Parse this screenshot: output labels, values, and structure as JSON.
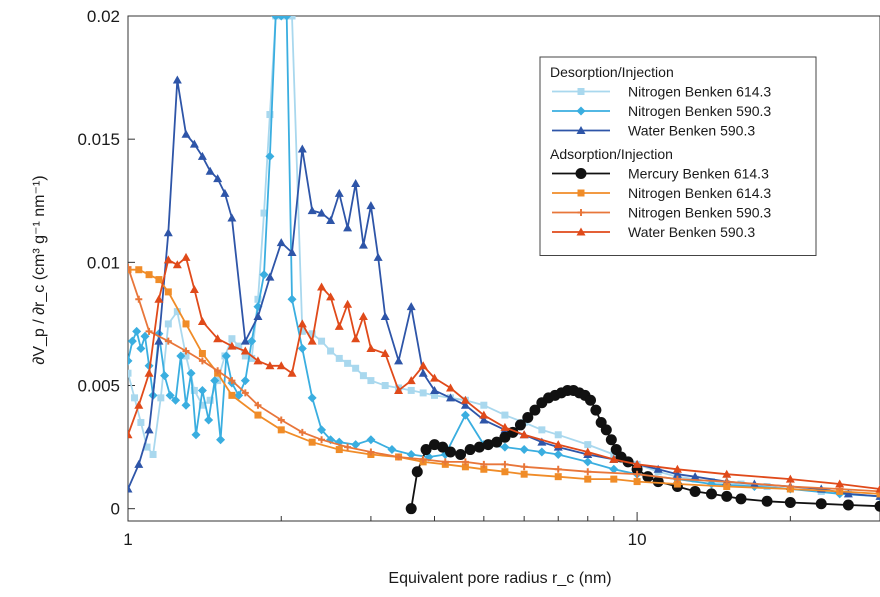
{
  "chart_data": {
    "type": "line",
    "title": "",
    "xlabel": "Equivalent pore radius r_c (nm)",
    "ylabel": "∂V_p / ∂r_c (cm³ g⁻¹ nm⁻¹)",
    "xscale": "log",
    "xlim": [
      1,
      30
    ],
    "ylim": [
      -0.0005,
      0.02
    ],
    "x_ticks": [
      {
        "value": 1,
        "label": "1"
      },
      {
        "value": 10,
        "label": "10"
      }
    ],
    "y_ticks": [
      {
        "value": 0,
        "label": "0"
      },
      {
        "value": 0.005,
        "label": "0.005"
      },
      {
        "value": 0.01,
        "label": "0.01"
      },
      {
        "value": 0.015,
        "label": "0.015"
      },
      {
        "value": 0.02,
        "label": "0.02"
      }
    ],
    "grid": false,
    "legend_position": "top-right",
    "legend_groups": [
      {
        "title": "Desorption/Injection",
        "series_indices": [
          0,
          1,
          2
        ]
      },
      {
        "title": "Adsorption/Injection",
        "series_indices": [
          3,
          4,
          5,
          6
        ]
      }
    ],
    "series": [
      {
        "name": "Nitrogen Benken 614.3",
        "color": "#a9d8ee",
        "marker": "square",
        "x": [
          1.0,
          1.03,
          1.06,
          1.09,
          1.12,
          1.16,
          1.2,
          1.25,
          1.3,
          1.35,
          1.4,
          1.45,
          1.5,
          1.55,
          1.6,
          1.65,
          1.7,
          1.75,
          1.8,
          1.85,
          1.9,
          1.95,
          2.0,
          2.05,
          2.1,
          2.2,
          2.3,
          2.4,
          2.5,
          2.6,
          2.7,
          2.8,
          2.9,
          3.0,
          3.2,
          3.4,
          3.6,
          3.8,
          4.0,
          4.3,
          4.6,
          5.0,
          5.5,
          6.0,
          6.5,
          7.0,
          8.0,
          9.0,
          10,
          11,
          12,
          13,
          14,
          16,
          18,
          20,
          23,
          26,
          30
        ],
        "y": [
          0.0055,
          0.0045,
          0.0035,
          0.0025,
          0.0022,
          0.0045,
          0.0075,
          0.008,
          0.0062,
          0.0048,
          0.0042,
          0.0044,
          0.0052,
          0.0062,
          0.0069,
          0.0066,
          0.0062,
          0.0061,
          0.0085,
          0.012,
          0.016,
          0.02,
          0.02,
          0.02,
          0.02,
          0.0072,
          0.0071,
          0.0068,
          0.0064,
          0.0061,
          0.0059,
          0.0057,
          0.0054,
          0.0052,
          0.005,
          0.0049,
          0.0048,
          0.0047,
          0.0046,
          0.0045,
          0.0044,
          0.0042,
          0.0038,
          0.0035,
          0.0032,
          0.003,
          0.0026,
          0.0022,
          0.0018,
          0.0015,
          0.0013,
          0.0012,
          0.0011,
          0.001,
          0.0009,
          0.0008,
          0.0007,
          0.0006,
          0.0005
        ]
      },
      {
        "name": "Nitrogen Benken 590.3",
        "color": "#3aaee0",
        "marker": "diamond",
        "x": [
          1.0,
          1.02,
          1.04,
          1.06,
          1.08,
          1.1,
          1.12,
          1.15,
          1.18,
          1.21,
          1.24,
          1.27,
          1.3,
          1.33,
          1.36,
          1.4,
          1.44,
          1.48,
          1.52,
          1.56,
          1.6,
          1.65,
          1.7,
          1.75,
          1.8,
          1.85,
          1.9,
          1.95,
          2.0,
          2.05,
          2.1,
          2.2,
          2.3,
          2.4,
          2.5,
          2.6,
          2.8,
          3.0,
          3.3,
          3.6,
          3.9,
          4.2,
          4.6,
          5.0,
          5.5,
          6.0,
          6.5,
          7.0,
          8.0,
          9.0,
          10,
          12,
          14,
          17,
          20,
          25,
          30
        ],
        "y": [
          0.006,
          0.0068,
          0.0072,
          0.0065,
          0.007,
          0.0058,
          0.0046,
          0.0071,
          0.0054,
          0.0046,
          0.0044,
          0.0062,
          0.0042,
          0.0055,
          0.003,
          0.0048,
          0.0036,
          0.0052,
          0.0028,
          0.0062,
          0.0051,
          0.0046,
          0.0052,
          0.0068,
          0.0082,
          0.0095,
          0.0143,
          0.02,
          0.02,
          0.02,
          0.0085,
          0.0065,
          0.0045,
          0.0032,
          0.0028,
          0.0027,
          0.0026,
          0.0028,
          0.0024,
          0.0022,
          0.0021,
          0.0022,
          0.0038,
          0.0026,
          0.0025,
          0.0024,
          0.0023,
          0.0022,
          0.0019,
          0.0016,
          0.0014,
          0.0012,
          0.001,
          0.0009,
          0.0008,
          0.0006,
          0.0005
        ]
      },
      {
        "name": "Water Benken 590.3",
        "color": "#2e55a8",
        "marker": "triangle",
        "x": [
          1.0,
          1.05,
          1.1,
          1.15,
          1.2,
          1.25,
          1.3,
          1.35,
          1.4,
          1.45,
          1.5,
          1.55,
          1.6,
          1.7,
          1.8,
          1.9,
          2.0,
          2.1,
          2.2,
          2.3,
          2.4,
          2.5,
          2.6,
          2.7,
          2.8,
          2.9,
          3.0,
          3.1,
          3.2,
          3.4,
          3.6,
          3.8,
          4.0,
          4.3,
          4.6,
          5.0,
          5.5,
          6.0,
          6.5,
          7.0,
          8.0,
          9.0,
          10,
          11,
          12,
          13,
          15,
          17,
          20,
          23,
          26,
          30
        ],
        "y": [
          0.0008,
          0.0018,
          0.0032,
          0.0068,
          0.0112,
          0.0174,
          0.0152,
          0.0148,
          0.0143,
          0.0137,
          0.0134,
          0.0128,
          0.0118,
          0.0068,
          0.0078,
          0.0094,
          0.0108,
          0.0104,
          0.0146,
          0.0121,
          0.012,
          0.0117,
          0.0128,
          0.0114,
          0.0132,
          0.0107,
          0.0123,
          0.0102,
          0.0078,
          0.006,
          0.0082,
          0.0055,
          0.0048,
          0.0045,
          0.0042,
          0.0036,
          0.0032,
          0.003,
          0.0027,
          0.0025,
          0.0022,
          0.002,
          0.0018,
          0.0016,
          0.0014,
          0.0013,
          0.0011,
          0.001,
          0.0009,
          0.0008,
          0.0006,
          0.0005
        ]
      },
      {
        "name": "Mercury Benken 614.3",
        "color": "#111111",
        "marker": "circle",
        "x": [
          3.6,
          3.7,
          3.85,
          4.0,
          4.15,
          4.3,
          4.5,
          4.7,
          4.9,
          5.1,
          5.3,
          5.5,
          5.7,
          5.9,
          6.1,
          6.3,
          6.5,
          6.7,
          6.9,
          7.1,
          7.3,
          7.5,
          7.7,
          7.9,
          8.1,
          8.3,
          8.5,
          8.7,
          8.9,
          9.1,
          9.3,
          9.6,
          10.0,
          10.5,
          11,
          12,
          13,
          14,
          15,
          16,
          18,
          20,
          23,
          26,
          30
        ],
        "y": [
          0.0,
          0.0015,
          0.0024,
          0.0026,
          0.0025,
          0.0023,
          0.0022,
          0.0024,
          0.0025,
          0.0026,
          0.0027,
          0.0029,
          0.0031,
          0.0034,
          0.0037,
          0.004,
          0.0043,
          0.0045,
          0.0046,
          0.0047,
          0.0048,
          0.0048,
          0.0047,
          0.0046,
          0.0044,
          0.004,
          0.0035,
          0.0032,
          0.0028,
          0.0024,
          0.0021,
          0.0019,
          0.0016,
          0.0013,
          0.0011,
          0.0009,
          0.0007,
          0.0006,
          0.0005,
          0.0004,
          0.0003,
          0.00025,
          0.0002,
          0.00015,
          0.0001
        ]
      },
      {
        "name": "Nitrogen Benken 614.3",
        "color": "#f08c28",
        "marker": "square",
        "x": [
          1.0,
          1.05,
          1.1,
          1.15,
          1.2,
          1.3,
          1.4,
          1.5,
          1.6,
          1.8,
          2.0,
          2.3,
          2.6,
          3.0,
          3.4,
          3.8,
          4.2,
          4.6,
          5.0,
          5.5,
          6.0,
          7.0,
          8.0,
          9.0,
          10,
          12,
          15,
          20,
          25,
          30
        ],
        "y": [
          0.0097,
          0.0097,
          0.0095,
          0.0093,
          0.0088,
          0.0075,
          0.0063,
          0.0055,
          0.0046,
          0.0038,
          0.0032,
          0.0027,
          0.0024,
          0.0022,
          0.0021,
          0.0019,
          0.0018,
          0.0017,
          0.0016,
          0.0015,
          0.0014,
          0.0013,
          0.0012,
          0.0012,
          0.0011,
          0.001,
          0.0009,
          0.0008,
          0.0007,
          0.0006
        ]
      },
      {
        "name": "Nitrogen Benken 590.3",
        "color": "#e8763a",
        "marker": "plus",
        "x": [
          1.0,
          1.05,
          1.1,
          1.2,
          1.3,
          1.4,
          1.5,
          1.6,
          1.7,
          1.8,
          2.0,
          2.2,
          2.4,
          2.7,
          3.0,
          3.4,
          3.8,
          4.2,
          4.6,
          5.0,
          5.5,
          6.0,
          7.0,
          8.0,
          10,
          12,
          15,
          20,
          25,
          30
        ],
        "y": [
          0.0098,
          0.0085,
          0.0072,
          0.0068,
          0.0064,
          0.006,
          0.0056,
          0.0052,
          0.0047,
          0.0042,
          0.0036,
          0.0031,
          0.0028,
          0.0025,
          0.0023,
          0.0021,
          0.002,
          0.0019,
          0.0019,
          0.0018,
          0.0018,
          0.0017,
          0.0016,
          0.0015,
          0.0014,
          0.0012,
          0.0011,
          0.0009,
          0.0008,
          0.0007
        ]
      },
      {
        "name": "Water Benken 590.3",
        "color": "#e04a1a",
        "marker": "triangle",
        "x": [
          1.0,
          1.05,
          1.1,
          1.15,
          1.2,
          1.25,
          1.3,
          1.35,
          1.4,
          1.5,
          1.6,
          1.7,
          1.8,
          1.9,
          2.0,
          2.1,
          2.2,
          2.3,
          2.4,
          2.5,
          2.6,
          2.7,
          2.8,
          2.9,
          3.0,
          3.2,
          3.4,
          3.6,
          3.8,
          4.0,
          4.3,
          4.6,
          5.0,
          5.5,
          6.0,
          7.0,
          8.0,
          9.0,
          10,
          12,
          15,
          20,
          25,
          30
        ],
        "y": [
          0.003,
          0.0042,
          0.0055,
          0.0085,
          0.0101,
          0.0099,
          0.0102,
          0.0089,
          0.0076,
          0.0069,
          0.0066,
          0.0064,
          0.006,
          0.0058,
          0.0058,
          0.0055,
          0.0075,
          0.0068,
          0.009,
          0.0086,
          0.0074,
          0.0083,
          0.0069,
          0.0078,
          0.0065,
          0.0063,
          0.0048,
          0.0052,
          0.0058,
          0.0053,
          0.0049,
          0.0044,
          0.0038,
          0.0033,
          0.003,
          0.0026,
          0.0023,
          0.002,
          0.0018,
          0.0016,
          0.0014,
          0.0012,
          0.001,
          0.0008
        ]
      }
    ]
  }
}
